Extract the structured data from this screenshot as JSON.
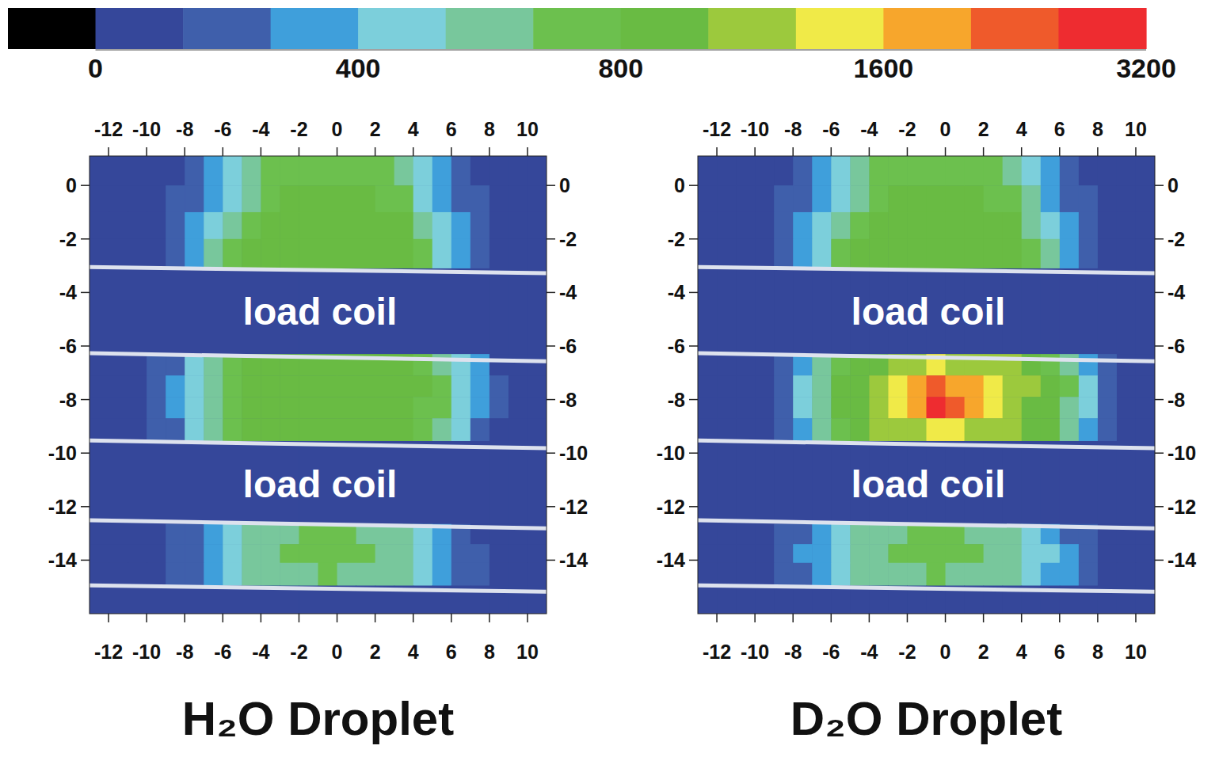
{
  "chart_data": {
    "type": "heatmap",
    "colorbar": {
      "range": [
        0,
        3200
      ],
      "ticks": [
        0,
        400,
        800,
        1600,
        3200
      ],
      "boundaries": [
        0,
        133,
        267,
        400,
        533,
        667,
        800,
        1067,
        1333,
        1600,
        2133,
        2667,
        3200
      ],
      "colors": [
        "#000000",
        "#35479a",
        "#3f5fab",
        "#3f9fdb",
        "#7ccfdb",
        "#78c79c",
        "#6cc04e",
        "#69bb43",
        "#9cc93d",
        "#f0ea48",
        "#f7a62c",
        "#ef5a2b",
        "#ee2c30"
      ]
    },
    "xlim": [
      -13,
      11
    ],
    "ylim": [
      -16,
      1.1
    ],
    "xticks": [
      -12,
      -10,
      -8,
      -6,
      -4,
      -2,
      0,
      2,
      4,
      6,
      8,
      10
    ],
    "yticks": [
      0,
      -2,
      -4,
      -6,
      -8,
      -10,
      -12,
      -14
    ],
    "x_edges": [
      -13,
      -12,
      -11,
      -10,
      -9,
      -8,
      -7,
      -6,
      -5,
      -4,
      -3,
      -2,
      -1,
      0,
      1,
      2,
      3,
      4,
      5,
      6,
      7,
      8,
      9,
      10,
      11
    ],
    "y_edges": [
      1.1,
      0,
      -1,
      -2,
      -3.1,
      -6.3,
      -7.1,
      -7.9,
      -8.7,
      -9.55,
      -12.65,
      -13.4,
      -14.1,
      -14.95,
      -16
    ],
    "coil_edges": [
      [
        -3.05,
        -3.28
      ],
      [
        -6.27,
        -6.57
      ],
      [
        -9.53,
        -9.82
      ],
      [
        -12.51,
        -12.81
      ],
      [
        -14.94,
        -15.18
      ]
    ],
    "panels": [
      {
        "title": "H₂O Droplet",
        "annotations": [
          {
            "text": "load coil",
            "x": -0.9,
            "y": -4.7
          },
          {
            "text": "load coil",
            "x": -0.9,
            "y": -11.15
          }
        ],
        "cells": [
          [
            10,
            20,
            60,
            90,
            130,
            200,
            300,
            420,
            560,
            680,
            740,
            760,
            770,
            760,
            740,
            680,
            560,
            420,
            300,
            180,
            110,
            60,
            25,
            10
          ],
          [
            15,
            30,
            70,
            110,
            170,
            260,
            380,
            520,
            660,
            760,
            820,
            850,
            860,
            850,
            820,
            780,
            680,
            520,
            380,
            240,
            140,
            70,
            30,
            10
          ],
          [
            15,
            35,
            80,
            120,
            200,
            320,
            480,
            640,
            780,
            880,
            930,
            960,
            970,
            960,
            930,
            880,
            800,
            640,
            460,
            300,
            170,
            90,
            40,
            15
          ],
          [
            15,
            35,
            85,
            130,
            220,
            360,
            540,
            700,
            820,
            900,
            950,
            970,
            980,
            970,
            950,
            910,
            840,
            700,
            520,
            340,
            190,
            100,
            45,
            15
          ],
          [
            40,
            40,
            40,
            40,
            40,
            40,
            40,
            40,
            40,
            40,
            40,
            40,
            40,
            40,
            40,
            40,
            40,
            40,
            40,
            40,
            40,
            40,
            40,
            40
          ],
          [
            15,
            35,
            80,
            140,
            250,
            420,
            600,
            740,
            820,
            860,
            880,
            900,
            900,
            900,
            880,
            860,
            820,
            760,
            640,
            460,
            270,
            130,
            55,
            20
          ],
          [
            15,
            40,
            90,
            160,
            280,
            460,
            640,
            780,
            860,
            900,
            930,
            950,
            960,
            950,
            930,
            900,
            860,
            800,
            680,
            500,
            300,
            150,
            60,
            20
          ],
          [
            15,
            40,
            90,
            160,
            280,
            450,
            630,
            770,
            850,
            890,
            920,
            940,
            950,
            940,
            920,
            890,
            850,
            790,
            670,
            490,
            290,
            140,
            60,
            20
          ],
          [
            15,
            35,
            80,
            140,
            240,
            400,
            580,
            720,
            800,
            840,
            860,
            880,
            890,
            880,
            860,
            840,
            800,
            740,
            620,
            440,
            260,
            120,
            50,
            20
          ],
          [
            40,
            40,
            40,
            40,
            40,
            40,
            40,
            40,
            40,
            40,
            40,
            40,
            40,
            40,
            40,
            40,
            40,
            40,
            40,
            40,
            40,
            40,
            40,
            40
          ],
          [
            15,
            30,
            60,
            100,
            150,
            230,
            340,
            460,
            560,
            620,
            650,
            670,
            680,
            670,
            650,
            620,
            550,
            450,
            340,
            220,
            130,
            70,
            30,
            15
          ],
          [
            15,
            35,
            70,
            110,
            170,
            260,
            380,
            500,
            590,
            640,
            670,
            690,
            700,
            690,
            670,
            640,
            580,
            480,
            370,
            250,
            150,
            80,
            35,
            15
          ],
          [
            15,
            35,
            70,
            110,
            170,
            260,
            370,
            480,
            570,
            620,
            650,
            660,
            670,
            660,
            650,
            620,
            570,
            480,
            380,
            260,
            160,
            90,
            40,
            15
          ],
          [
            40,
            40,
            40,
            40,
            40,
            40,
            40,
            40,
            40,
            40,
            40,
            40,
            40,
            40,
            40,
            40,
            40,
            40,
            40,
            40,
            40,
            40,
            40,
            40
          ]
        ]
      },
      {
        "title": "D₂O Droplet",
        "annotations": [
          {
            "text": "load coil",
            "x": -0.9,
            "y": -4.7
          },
          {
            "text": "load coil",
            "x": -0.9,
            "y": -11.15
          }
        ],
        "cells": [
          [
            10,
            20,
            50,
            80,
            120,
            190,
            290,
            410,
            550,
            680,
            750,
            780,
            790,
            780,
            750,
            690,
            580,
            440,
            310,
            190,
            110,
            60,
            25,
            10
          ],
          [
            15,
            30,
            60,
            100,
            160,
            250,
            370,
            510,
            660,
            770,
            840,
            870,
            880,
            870,
            840,
            790,
            700,
            550,
            390,
            250,
            140,
            70,
            30,
            10
          ],
          [
            15,
            30,
            70,
            110,
            190,
            310,
            470,
            640,
            790,
            900,
            960,
            990,
            1000,
            990,
            960,
            900,
            820,
            660,
            480,
            310,
            170,
            90,
            40,
            15
          ],
          [
            15,
            35,
            75,
            120,
            210,
            350,
            530,
            700,
            830,
            920,
            980,
            1000,
            1020,
            1000,
            980,
            930,
            860,
            720,
            540,
            350,
            190,
            100,
            45,
            15
          ],
          [
            40,
            40,
            40,
            40,
            40,
            40,
            40,
            40,
            40,
            40,
            40,
            40,
            40,
            40,
            40,
            40,
            40,
            40,
            40,
            40,
            40,
            40,
            40,
            40
          ],
          [
            10,
            25,
            60,
            110,
            200,
            360,
            560,
            760,
            920,
            1060,
            1180,
            1280,
            1340,
            1330,
            1270,
            1180,
            1070,
            940,
            780,
            570,
            350,
            170,
            60,
            20
          ],
          [
            10,
            30,
            70,
            120,
            220,
            400,
            640,
            860,
            1050,
            1250,
            1420,
            1620,
            2300,
            2100,
            1600,
            1420,
            1250,
            1080,
            900,
            680,
            420,
            200,
            70,
            20
          ],
          [
            10,
            30,
            70,
            120,
            220,
            400,
            640,
            850,
            1030,
            1220,
            1400,
            1650,
            2700,
            2400,
            1620,
            1390,
            1220,
            1050,
            880,
            660,
            400,
            190,
            70,
            20
          ],
          [
            10,
            25,
            60,
            110,
            200,
            360,
            580,
            780,
            940,
            1100,
            1220,
            1320,
            1400,
            1380,
            1310,
            1220,
            1100,
            960,
            800,
            590,
            360,
            170,
            60,
            20
          ],
          [
            40,
            40,
            40,
            40,
            40,
            40,
            40,
            40,
            40,
            40,
            40,
            40,
            40,
            40,
            40,
            40,
            40,
            40,
            40,
            40,
            40,
            40,
            40,
            40
          ],
          [
            15,
            30,
            60,
            100,
            160,
            240,
            350,
            470,
            570,
            630,
            660,
            680,
            690,
            680,
            660,
            630,
            570,
            480,
            370,
            250,
            150,
            80,
            35,
            15
          ],
          [
            15,
            35,
            70,
            110,
            180,
            270,
            390,
            510,
            600,
            650,
            680,
            700,
            710,
            700,
            680,
            650,
            600,
            510,
            400,
            270,
            160,
            90,
            40,
            15
          ],
          [
            15,
            35,
            70,
            110,
            170,
            260,
            370,
            480,
            570,
            620,
            650,
            660,
            670,
            660,
            650,
            620,
            570,
            490,
            390,
            270,
            170,
            90,
            40,
            15
          ],
          [
            40,
            40,
            40,
            40,
            40,
            40,
            40,
            40,
            40,
            40,
            40,
            40,
            40,
            40,
            40,
            40,
            40,
            40,
            40,
            40,
            40,
            40,
            40,
            40
          ]
        ]
      }
    ]
  }
}
